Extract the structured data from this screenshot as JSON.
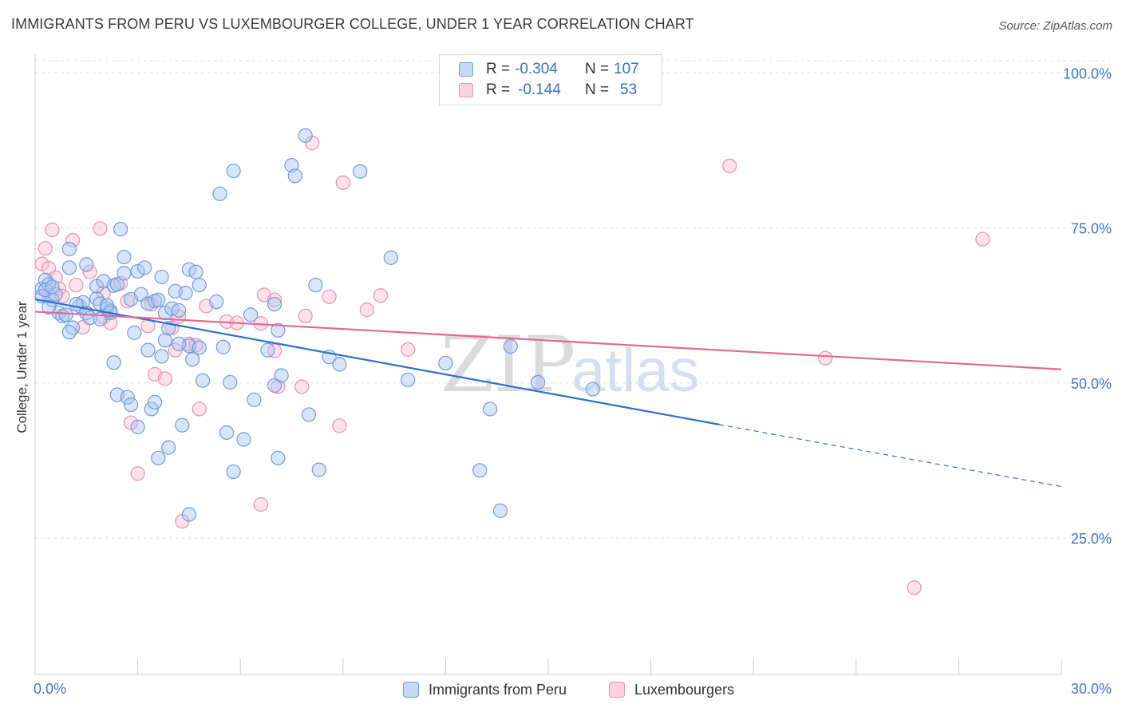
{
  "title": "IMMIGRANTS FROM PERU VS LUXEMBOURGER COLLEGE, UNDER 1 YEAR CORRELATION CHART",
  "source": "Source: ZipAtlas.com",
  "watermark": {
    "zip": "ZIP",
    "atlas": "atlas"
  },
  "colors": {
    "blue_fill": "#a9c6ef",
    "blue_stroke": "#6f9be0",
    "blue_line": "#2f6fd0",
    "pink_fill": "#f7bfd2",
    "pink_stroke": "#ec8fb0",
    "pink_line": "#e06a92",
    "axis_label": "#3f74c9",
    "grid": "#dddddd"
  },
  "legend": {
    "rows": [
      {
        "r_label": "R = ",
        "r_value": "-0.304",
        "n_label": "N = ",
        "n_value": "107",
        "series": "blue"
      },
      {
        "r_label": "R = ",
        "r_value": "-0.144",
        "n_label": "N = ",
        "n_value": "53",
        "series": "pink"
      }
    ]
  },
  "bottom_legend": [
    "Immigrants from Peru",
    "Luxembourgers"
  ],
  "chart_data": {
    "type": "scatter",
    "title": "IMMIGRANTS FROM PERU VS LUXEMBOURGER COLLEGE, UNDER 1 YEAR CORRELATION CHART",
    "xlabel": "",
    "ylabel": "College, Under 1 year",
    "xlim": [
      0,
      30
    ],
    "ylim": [
      3,
      103
    ],
    "x_tick_labels": [
      "0.0%",
      "30.0%"
    ],
    "y_ticks": [
      25,
      50,
      75,
      100
    ],
    "y_tick_labels": [
      "25.0%",
      "50.0%",
      "75.0%",
      "100.0%"
    ],
    "grid": true,
    "series": [
      {
        "name": "Immigrants from Peru",
        "color": "blue",
        "r": -0.304,
        "n": 107,
        "trend": {
          "x0": 0,
          "y0": 63.5,
          "x1": 20.0,
          "y1": 43.3,
          "dash_to_x": 30,
          "dash_to_y": 33.3
        },
        "points": [
          [
            0.2,
            65.2
          ],
          [
            0.3,
            66.6
          ],
          [
            0.2,
            64.0
          ],
          [
            0.4,
            65.9
          ],
          [
            0.5,
            63.4
          ],
          [
            0.3,
            65.0
          ],
          [
            0.6,
            64.3
          ],
          [
            0.5,
            65.5
          ],
          [
            0.7,
            61.3
          ],
          [
            0.8,
            60.8
          ],
          [
            0.9,
            61.0
          ],
          [
            1.1,
            58.9
          ],
          [
            1.0,
            58.2
          ],
          [
            1.0,
            68.6
          ],
          [
            1.0,
            71.6
          ],
          [
            1.5,
            69.1
          ],
          [
            1.3,
            62.4
          ],
          [
            1.4,
            63.0
          ],
          [
            1.5,
            61.3
          ],
          [
            1.6,
            60.5
          ],
          [
            1.8,
            63.6
          ],
          [
            1.9,
            62.8
          ],
          [
            1.8,
            65.6
          ],
          [
            2.0,
            66.4
          ],
          [
            2.1,
            62.0
          ],
          [
            2.2,
            61.6
          ],
          [
            2.3,
            65.7
          ],
          [
            2.4,
            65.9
          ],
          [
            2.5,
            74.8
          ],
          [
            2.6,
            70.3
          ],
          [
            2.6,
            67.7
          ],
          [
            2.8,
            63.5
          ],
          [
            2.9,
            58.1
          ],
          [
            3.0,
            68.0
          ],
          [
            3.1,
            64.3
          ],
          [
            3.2,
            68.6
          ],
          [
            3.3,
            55.3
          ],
          [
            3.3,
            62.8
          ],
          [
            3.5,
            63.2
          ],
          [
            3.6,
            63.4
          ],
          [
            3.7,
            67.1
          ],
          [
            3.7,
            54.3
          ],
          [
            3.8,
            61.3
          ],
          [
            3.9,
            58.8
          ],
          [
            4.0,
            62.0
          ],
          [
            4.2,
            61.7
          ],
          [
            4.1,
            64.8
          ],
          [
            4.4,
            64.5
          ],
          [
            4.5,
            68.3
          ],
          [
            4.7,
            67.9
          ],
          [
            4.8,
            65.8
          ],
          [
            4.5,
            56.0
          ],
          [
            4.8,
            55.7
          ],
          [
            4.2,
            56.3
          ],
          [
            4.6,
            53.8
          ],
          [
            4.9,
            50.4
          ],
          [
            2.3,
            53.3
          ],
          [
            2.4,
            48.1
          ],
          [
            2.7,
            47.7
          ],
          [
            2.8,
            46.5
          ],
          [
            3.0,
            42.9
          ],
          [
            3.4,
            45.8
          ],
          [
            3.5,
            46.9
          ],
          [
            3.6,
            37.9
          ],
          [
            3.9,
            39.6
          ],
          [
            4.3,
            43.2
          ],
          [
            4.5,
            28.8
          ],
          [
            5.3,
            63.1
          ],
          [
            5.5,
            55.8
          ],
          [
            5.6,
            42.0
          ],
          [
            5.8,
            35.7
          ],
          [
            5.7,
            50.1
          ],
          [
            6.3,
            61.0
          ],
          [
            6.1,
            40.9
          ],
          [
            6.4,
            47.3
          ],
          [
            6.8,
            55.3
          ],
          [
            7.0,
            49.6
          ],
          [
            7.0,
            62.7
          ],
          [
            7.1,
            58.5
          ],
          [
            7.1,
            37.9
          ],
          [
            7.2,
            51.2
          ],
          [
            5.8,
            84.2
          ],
          [
            5.4,
            80.5
          ],
          [
            7.5,
            85.1
          ],
          [
            7.6,
            83.4
          ],
          [
            7.9,
            89.9
          ],
          [
            8.0,
            44.9
          ],
          [
            8.3,
            36.0
          ],
          [
            8.2,
            65.8
          ],
          [
            8.6,
            54.2
          ],
          [
            8.9,
            53.0
          ],
          [
            9.5,
            84.1
          ],
          [
            10.4,
            70.2
          ],
          [
            10.9,
            50.5
          ],
          [
            12.0,
            53.2
          ],
          [
            13.0,
            35.9
          ],
          [
            13.3,
            45.8
          ],
          [
            13.6,
            29.4
          ],
          [
            13.9,
            55.9
          ],
          [
            14.7,
            50.1
          ],
          [
            16.3,
            49.0
          ],
          [
            0.4,
            62.2
          ],
          [
            1.9,
            60.3
          ],
          [
            2.2,
            61.3
          ],
          [
            3.8,
            56.9
          ],
          [
            2.1,
            62.5
          ],
          [
            1.2,
            62.7
          ]
        ]
      },
      {
        "name": "Luxembourgers",
        "color": "pink",
        "r": -0.144,
        "n": 53,
        "trend": {
          "x0": 0,
          "y0": 61.5,
          "x1": 30,
          "y1": 52.2
        },
        "points": [
          [
            0.2,
            69.2
          ],
          [
            0.3,
            71.7
          ],
          [
            0.4,
            68.5
          ],
          [
            0.5,
            74.7
          ],
          [
            0.6,
            67.0
          ],
          [
            0.7,
            65.2
          ],
          [
            0.4,
            64.2
          ],
          [
            0.8,
            64.0
          ],
          [
            1.1,
            73.0
          ],
          [
            1.2,
            65.8
          ],
          [
            1.4,
            59.0
          ],
          [
            1.6,
            67.9
          ],
          [
            1.9,
            74.9
          ],
          [
            2.0,
            64.5
          ],
          [
            2.0,
            60.6
          ],
          [
            2.2,
            59.7
          ],
          [
            2.5,
            66.1
          ],
          [
            2.7,
            63.2
          ],
          [
            2.8,
            43.6
          ],
          [
            3.0,
            35.4
          ],
          [
            3.3,
            59.2
          ],
          [
            3.4,
            62.7
          ],
          [
            3.5,
            51.4
          ],
          [
            3.8,
            50.7
          ],
          [
            4.0,
            58.9
          ],
          [
            4.1,
            55.3
          ],
          [
            4.2,
            60.7
          ],
          [
            4.3,
            27.7
          ],
          [
            4.5,
            56.3
          ],
          [
            4.7,
            56.1
          ],
          [
            4.8,
            45.8
          ],
          [
            5.0,
            62.4
          ],
          [
            5.6,
            59.9
          ],
          [
            5.9,
            59.7
          ],
          [
            6.6,
            30.4
          ],
          [
            6.7,
            64.2
          ],
          [
            7.0,
            63.4
          ],
          [
            7.1,
            49.4
          ],
          [
            7.0,
            55.2
          ],
          [
            7.8,
            49.4
          ],
          [
            7.9,
            60.8
          ],
          [
            8.1,
            88.7
          ],
          [
            8.6,
            63.9
          ],
          [
            8.9,
            43.1
          ],
          [
            9.0,
            82.3
          ],
          [
            9.7,
            61.8
          ],
          [
            10.1,
            64.1
          ],
          [
            10.9,
            55.4
          ],
          [
            20.3,
            85.0
          ],
          [
            23.1,
            54.0
          ],
          [
            25.7,
            17.0
          ],
          [
            27.7,
            73.2
          ],
          [
            6.6,
            59.6
          ]
        ]
      }
    ]
  }
}
